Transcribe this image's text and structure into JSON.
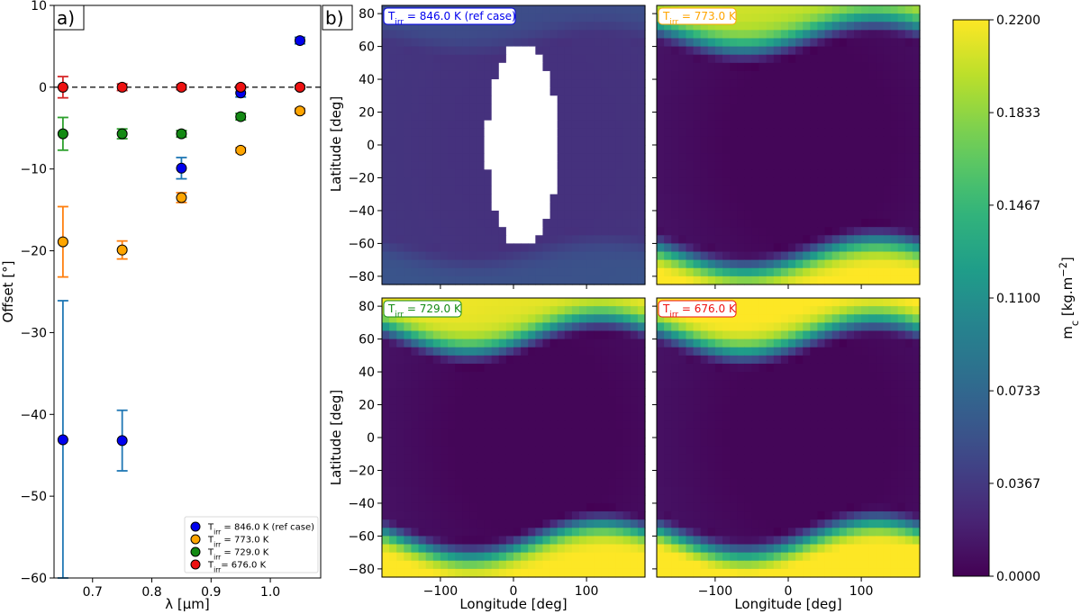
{
  "colors": {
    "blue": "#0000ee",
    "orange": "#ffa500",
    "green": "#138a13",
    "red": "#ee1111",
    "errorbar_blue": "#1f77b4",
    "errorbar_orange": "#ff7f0e",
    "errorbar_green": "#2ca02c",
    "errorbar_red": "#d62728",
    "viridis_low": "#440154",
    "viridis_high": "#fde725"
  },
  "chart_data": [
    {
      "type": "scatter",
      "panel_tag": "a)",
      "xlabel": "λ [μm]",
      "ylabel": "Offset [°]",
      "xlim": [
        0.635,
        1.085
      ],
      "ylim": [
        -60,
        10
      ],
      "xticks": [
        "0.7",
        "0.8",
        "0.9",
        "1.0"
      ],
      "xtick_values": [
        0.7,
        0.8,
        0.9,
        1.0
      ],
      "yticks": [
        "10",
        "0",
        "−10",
        "−20",
        "−30",
        "−40",
        "−50",
        "−60"
      ],
      "ytick_values": [
        10,
        0,
        -10,
        -20,
        -30,
        -40,
        -50,
        -60
      ],
      "reference_line": {
        "y": 0,
        "style": "dashed"
      },
      "legend_position": "bottom-right",
      "series": [
        {
          "name": "T_irr = 846.0 K (ref case)",
          "legend_main": "T",
          "legend_sub": "irr",
          "legend_rest": " = 846.0 K (ref case)",
          "color_key": "blue",
          "err_key": "errorbar_blue",
          "x": [
            0.65,
            0.75,
            0.85,
            0.95,
            1.05
          ],
          "y": [
            -43.1,
            -43.2,
            -9.9,
            -0.7,
            5.7
          ],
          "err": [
            17,
            3.7,
            1.3,
            0.5,
            0.4
          ]
        },
        {
          "name": "T_irr = 773.0 K",
          "legend_main": "T",
          "legend_sub": "irr",
          "legend_rest": " = 773.0 K",
          "color_key": "orange",
          "err_key": "errorbar_orange",
          "x": [
            0.65,
            0.75,
            0.85,
            0.95,
            1.05
          ],
          "y": [
            -18.9,
            -19.9,
            -13.5,
            -7.7,
            -2.9
          ],
          "err": [
            4.3,
            1.1,
            0.6,
            0.3,
            0.3
          ]
        },
        {
          "name": "T_irr = 729.0 K",
          "legend_main": "T",
          "legend_sub": "irr",
          "legend_rest": " = 729.0 K",
          "color_key": "green",
          "err_key": "errorbar_green",
          "x": [
            0.65,
            0.75,
            0.85,
            0.95,
            1.05
          ],
          "y": [
            -5.7,
            -5.7,
            -5.7,
            -3.6,
            0
          ],
          "err": [
            2.0,
            0.6,
            0.4,
            0.4,
            0.2
          ]
        },
        {
          "name": "T_irr= 676.0 K",
          "legend_main": "T",
          "legend_sub": "irr",
          "legend_rest": "= 676.0 K",
          "color_key": "red",
          "err_key": "errorbar_red",
          "x": [
            0.65,
            0.75,
            0.85,
            0.95,
            1.05
          ],
          "y": [
            0.0,
            0.0,
            0.0,
            0.0,
            0.0
          ],
          "err": [
            1.3,
            0.4,
            0.3,
            0.2,
            0.1
          ]
        }
      ]
    },
    {
      "type": "heatmap",
      "panel_tag": "b)",
      "xlabel": "Longitude [deg]",
      "ylabel": "Latitude [deg]",
      "xlim": [
        -180,
        180
      ],
      "ylim": [
        -85,
        85
      ],
      "xticks": [
        "−100",
        "0",
        "100"
      ],
      "xtick_values": [
        -100,
        0,
        100
      ],
      "yticks": [
        "80",
        "60",
        "40",
        "20",
        "0",
        "−20",
        "−40",
        "−60",
        "−80"
      ],
      "ytick_values": [
        80,
        60,
        40,
        20,
        0,
        -20,
        -40,
        -60,
        -80
      ],
      "panels": [
        {
          "label_main": "T",
          "label_sub": "irr",
          "label_rest": " = 846.0 K (ref case)",
          "color_key": "blue",
          "position": "top-left"
        },
        {
          "label_main": "T",
          "label_sub": "irr",
          "label_rest": " = 773.0 K",
          "color_key": "orange",
          "position": "top-right"
        },
        {
          "label_main": "T",
          "label_sub": "irr",
          "label_rest": " = 729.0 K",
          "color_key": "green",
          "position": "bottom-left"
        },
        {
          "label_main": "T",
          "label_sub": "irr",
          "label_rest": " = 676.0 K",
          "color_key": "red",
          "position": "bottom-right"
        }
      ],
      "colorbar": {
        "label_main": "m",
        "label_sub": "c",
        "label_rest": " [kg.m",
        "label_sup": "−2",
        "label_end": "]",
        "range": [
          0,
          0.22
        ],
        "ticks": [
          "0.0000",
          "0.0367",
          "0.0733",
          "0.1100",
          "0.1467",
          "0.1833",
          "0.2200"
        ],
        "tick_values": [
          0,
          0.0367,
          0.0733,
          0.11,
          0.1467,
          0.1833,
          0.22
        ],
        "colormap": "viridis"
      }
    }
  ]
}
